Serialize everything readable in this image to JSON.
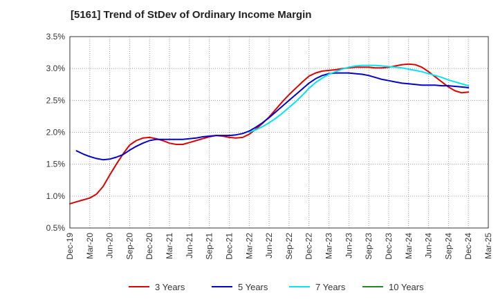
{
  "title": "[5161]  Trend of StDev of Ordinary Income Margin",
  "chart_data": {
    "type": "line",
    "title": "[5161]  Trend of StDev of Ordinary Income Margin",
    "xlabel": "",
    "ylabel": "",
    "x_ticks": [
      "Dec-19",
      "Mar-20",
      "Jun-20",
      "Sep-20",
      "Dec-20",
      "Mar-21",
      "Jun-21",
      "Sep-21",
      "Dec-21",
      "Mar-22",
      "Jun-22",
      "Sep-22",
      "Dec-22",
      "Mar-23",
      "Jun-23",
      "Sep-23",
      "Dec-23",
      "Mar-24",
      "Jun-24",
      "Sep-24",
      "Dec-24",
      "Mar-25"
    ],
    "y_ticks": [
      "0.5%",
      "1.0%",
      "1.5%",
      "2.0%",
      "2.5%",
      "3.0%",
      "3.5%"
    ],
    "ylim": [
      0.5,
      3.5
    ],
    "y_unit": "%",
    "grid": true,
    "legend_position": "bottom",
    "series": [
      {
        "name": "3 Years",
        "color": "#dd0000",
        "points": [
          [
            "Dec-19",
            0.88
          ],
          [
            "Jan-20",
            0.91
          ],
          [
            "Feb-20",
            0.94
          ],
          [
            "Mar-20",
            0.97
          ],
          [
            "Apr-20",
            1.03
          ],
          [
            "May-20",
            1.15
          ],
          [
            "Jun-20",
            1.33
          ],
          [
            "Jul-20",
            1.5
          ],
          [
            "Aug-20",
            1.66
          ],
          [
            "Sep-20",
            1.8
          ],
          [
            "Oct-20",
            1.87
          ],
          [
            "Nov-20",
            1.91
          ],
          [
            "Dec-20",
            1.92
          ],
          [
            "Jan-21",
            1.9
          ],
          [
            "Feb-21",
            1.87
          ],
          [
            "Mar-21",
            1.83
          ],
          [
            "Apr-21",
            1.81
          ],
          [
            "May-21",
            1.81
          ],
          [
            "Jun-21",
            1.84
          ],
          [
            "Jul-21",
            1.87
          ],
          [
            "Aug-21",
            1.9
          ],
          [
            "Sep-21",
            1.93
          ],
          [
            "Oct-21",
            1.95
          ],
          [
            "Nov-21",
            1.94
          ],
          [
            "Dec-21",
            1.92
          ],
          [
            "Jan-22",
            1.91
          ],
          [
            "Feb-22",
            1.92
          ],
          [
            "Mar-22",
            1.97
          ],
          [
            "Apr-22",
            2.05
          ],
          [
            "May-22",
            2.14
          ],
          [
            "Jun-22",
            2.24
          ],
          [
            "Jul-22",
            2.36
          ],
          [
            "Aug-22",
            2.48
          ],
          [
            "Sep-22",
            2.59
          ],
          [
            "Oct-22",
            2.69
          ],
          [
            "Nov-22",
            2.79
          ],
          [
            "Dec-22",
            2.88
          ],
          [
            "Jan-23",
            2.93
          ],
          [
            "Feb-23",
            2.96
          ],
          [
            "Mar-23",
            2.97
          ],
          [
            "Apr-23",
            2.98
          ],
          [
            "May-23",
            3.0
          ],
          [
            "Jun-23",
            3.01
          ],
          [
            "Jul-23",
            3.02
          ],
          [
            "Aug-23",
            3.02
          ],
          [
            "Sep-23",
            3.02
          ],
          [
            "Oct-23",
            3.01
          ],
          [
            "Nov-23",
            3.01
          ],
          [
            "Dec-23",
            3.02
          ],
          [
            "Jan-24",
            3.04
          ],
          [
            "Feb-24",
            3.06
          ],
          [
            "Mar-24",
            3.07
          ],
          [
            "Apr-24",
            3.06
          ],
          [
            "May-24",
            3.02
          ],
          [
            "Jun-24",
            2.95
          ],
          [
            "Jul-24",
            2.87
          ],
          [
            "Aug-24",
            2.79
          ],
          [
            "Sep-24",
            2.71
          ],
          [
            "Oct-24",
            2.65
          ],
          [
            "Nov-24",
            2.62
          ],
          [
            "Dec-24",
            2.63
          ]
        ]
      },
      {
        "name": "5 Years",
        "color": "#0000cc",
        "points": [
          [
            "Jan-20",
            1.71
          ],
          [
            "Feb-20",
            1.66
          ],
          [
            "Mar-20",
            1.62
          ],
          [
            "Apr-20",
            1.59
          ],
          [
            "May-20",
            1.57
          ],
          [
            "Jun-20",
            1.58
          ],
          [
            "Jul-20",
            1.61
          ],
          [
            "Aug-20",
            1.65
          ],
          [
            "Sep-20",
            1.72
          ],
          [
            "Oct-20",
            1.78
          ],
          [
            "Nov-20",
            1.83
          ],
          [
            "Dec-20",
            1.87
          ],
          [
            "Jan-21",
            1.89
          ],
          [
            "Feb-21",
            1.89
          ],
          [
            "Mar-21",
            1.89
          ],
          [
            "Apr-21",
            1.89
          ],
          [
            "May-21",
            1.89
          ],
          [
            "Jun-21",
            1.9
          ],
          [
            "Jul-21",
            1.91
          ],
          [
            "Aug-21",
            1.93
          ],
          [
            "Sep-21",
            1.94
          ],
          [
            "Oct-21",
            1.95
          ],
          [
            "Nov-21",
            1.95
          ],
          [
            "Dec-21",
            1.95
          ],
          [
            "Jan-22",
            1.96
          ],
          [
            "Feb-22",
            1.98
          ],
          [
            "Mar-22",
            2.02
          ],
          [
            "Apr-22",
            2.08
          ],
          [
            "May-22",
            2.15
          ],
          [
            "Jun-22",
            2.23
          ],
          [
            "Jul-22",
            2.32
          ],
          [
            "Aug-22",
            2.41
          ],
          [
            "Sep-22",
            2.5
          ],
          [
            "Oct-22",
            2.59
          ],
          [
            "Nov-22",
            2.68
          ],
          [
            "Dec-22",
            2.77
          ],
          [
            "Jan-23",
            2.84
          ],
          [
            "Feb-23",
            2.89
          ],
          [
            "Mar-23",
            2.92
          ],
          [
            "Apr-23",
            2.93
          ],
          [
            "May-23",
            2.93
          ],
          [
            "Jun-23",
            2.93
          ],
          [
            "Jul-23",
            2.92
          ],
          [
            "Aug-23",
            2.91
          ],
          [
            "Sep-23",
            2.89
          ],
          [
            "Oct-23",
            2.86
          ],
          [
            "Nov-23",
            2.83
          ],
          [
            "Dec-23",
            2.81
          ],
          [
            "Jan-24",
            2.79
          ],
          [
            "Feb-24",
            2.77
          ],
          [
            "Mar-24",
            2.76
          ],
          [
            "Apr-24",
            2.75
          ],
          [
            "May-24",
            2.74
          ],
          [
            "Jun-24",
            2.74
          ],
          [
            "Jul-24",
            2.74
          ],
          [
            "Aug-24",
            2.73
          ],
          [
            "Sep-24",
            2.73
          ],
          [
            "Oct-24",
            2.72
          ],
          [
            "Nov-24",
            2.71
          ],
          [
            "Dec-24",
            2.7
          ]
        ]
      },
      {
        "name": "7 Years",
        "color": "#00e5ee",
        "points": [
          [
            "Mar-22",
            2.0
          ],
          [
            "Apr-22",
            2.04
          ],
          [
            "May-22",
            2.09
          ],
          [
            "Jun-22",
            2.15
          ],
          [
            "Jul-22",
            2.22
          ],
          [
            "Aug-22",
            2.3
          ],
          [
            "Sep-22",
            2.39
          ],
          [
            "Oct-22",
            2.48
          ],
          [
            "Nov-22",
            2.58
          ],
          [
            "Dec-22",
            2.69
          ],
          [
            "Jan-23",
            2.78
          ],
          [
            "Feb-23",
            2.85
          ],
          [
            "Mar-23",
            2.91
          ],
          [
            "Apr-23",
            2.95
          ],
          [
            "May-23",
            2.99
          ],
          [
            "Jun-23",
            3.02
          ],
          [
            "Jul-23",
            3.04
          ],
          [
            "Aug-23",
            3.05
          ],
          [
            "Sep-23",
            3.05
          ],
          [
            "Oct-23",
            3.05
          ],
          [
            "Nov-23",
            3.04
          ],
          [
            "Dec-23",
            3.03
          ],
          [
            "Jan-24",
            3.02
          ],
          [
            "Feb-24",
            3.01
          ],
          [
            "Mar-24",
            2.99
          ],
          [
            "Apr-24",
            2.97
          ],
          [
            "May-24",
            2.95
          ],
          [
            "Jun-24",
            2.92
          ],
          [
            "Jul-24",
            2.89
          ],
          [
            "Aug-24",
            2.86
          ],
          [
            "Sep-24",
            2.82
          ],
          [
            "Oct-24",
            2.79
          ],
          [
            "Nov-24",
            2.76
          ],
          [
            "Dec-24",
            2.73
          ]
        ]
      },
      {
        "name": "10 Years",
        "color": "#228822",
        "points": []
      }
    ]
  }
}
